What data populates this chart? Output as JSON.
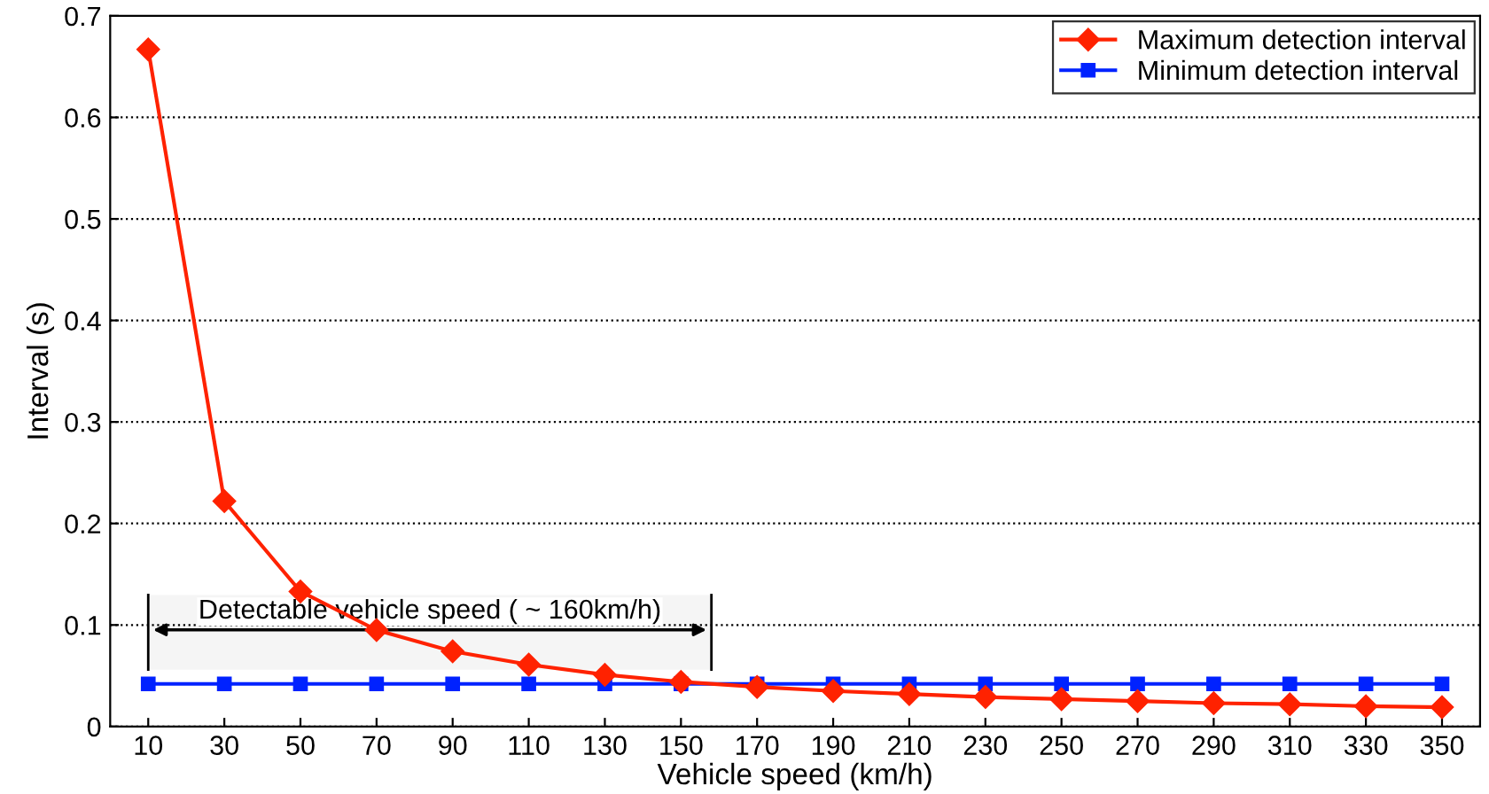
{
  "chart_data": {
    "type": "line",
    "xlabel": "Vehicle speed (km/h)",
    "ylabel": "Interval (s)",
    "x": [
      10,
      30,
      50,
      70,
      90,
      110,
      130,
      150,
      170,
      190,
      210,
      230,
      250,
      270,
      290,
      310,
      330,
      350
    ],
    "series": [
      {
        "name": "Maximum detection interval",
        "color": "#ff2200",
        "marker": "diamond",
        "values": [
          0.667,
          0.222,
          0.133,
          0.095,
          0.074,
          0.061,
          0.051,
          0.044,
          0.039,
          0.035,
          0.032,
          0.029,
          0.027,
          0.025,
          0.023,
          0.022,
          0.02,
          0.019
        ]
      },
      {
        "name": "Minimum detection interval",
        "color": "#0022ff",
        "marker": "square",
        "values": [
          0.042,
          0.042,
          0.042,
          0.042,
          0.042,
          0.042,
          0.042,
          0.042,
          0.042,
          0.042,
          0.042,
          0.042,
          0.042,
          0.042,
          0.042,
          0.042,
          0.042,
          0.042
        ]
      }
    ],
    "xlim": [
      0,
      360
    ],
    "xticks": [
      10,
      30,
      50,
      70,
      90,
      110,
      130,
      150,
      170,
      190,
      210,
      230,
      250,
      270,
      290,
      310,
      330,
      350
    ],
    "ylim": [
      0,
      0.7
    ],
    "yticks": [
      0,
      0.1,
      0.2,
      0.3,
      0.4,
      0.5,
      0.6,
      0.7
    ],
    "grid": "y",
    "legend": "top right",
    "line_style": "solid",
    "bands": [
      {
        "axis": "x",
        "from": 10,
        "to": 158,
        "label": "Detectable vehicle speed ( ~ 160km/h)",
        "color": "#000000"
      }
    ]
  }
}
